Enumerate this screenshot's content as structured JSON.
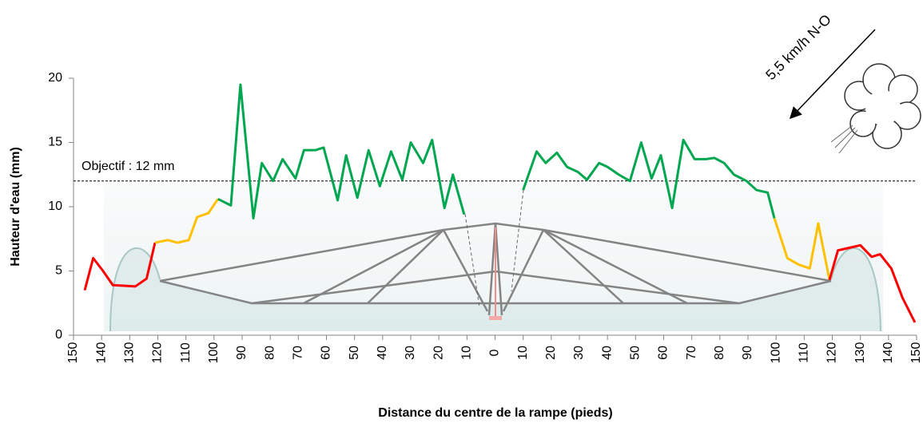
{
  "chart_data": {
    "type": "line",
    "y_label": "Hauteur d'eau (mm)",
    "x_label": "Distance  du centre de la rampe (pieds)",
    "annotation": "5,5 km/h N-O",
    "target": {
      "value": 12,
      "label": "Objectif : 12 mm"
    },
    "xlim": [
      -150,
      150
    ],
    "xticks": [
      {
        "value": -150,
        "label": "150"
      },
      {
        "value": -140,
        "label": "140"
      },
      {
        "value": -130,
        "label": "130"
      },
      {
        "value": -120,
        "label": "120"
      },
      {
        "value": -110,
        "label": "110"
      },
      {
        "value": -100,
        "label": "100"
      },
      {
        "value": -90,
        "label": "90"
      },
      {
        "value": -80,
        "label": "80"
      },
      {
        "value": -70,
        "label": "70"
      },
      {
        "value": -60,
        "label": "60"
      },
      {
        "value": -50,
        "label": "50"
      },
      {
        "value": -40,
        "label": "40"
      },
      {
        "value": -30,
        "label": "30"
      },
      {
        "value": -20,
        "label": "20"
      },
      {
        "value": -10,
        "label": "10"
      },
      0,
      10,
      20,
      30,
      40,
      50,
      60,
      70,
      80,
      90,
      100,
      110,
      120,
      130,
      140,
      150
    ],
    "ylim": [
      0,
      20
    ],
    "yticks": [
      0,
      5,
      10,
      15,
      20
    ],
    "series": [
      {
        "color": "#ff0000",
        "x": [
          -146,
          -143,
          -139.5,
          -136,
          -132,
          -128,
          -124,
          -121
        ],
        "values": [
          3.5,
          6.0,
          5.0,
          3.9,
          3.85,
          3.8,
          4.4,
          7.2
        ]
      },
      {
        "color": "#ffc000",
        "x": [
          -121,
          -116.5,
          -113,
          -109,
          -106,
          -102,
          -98.6
        ],
        "values": [
          7.2,
          7.4,
          7.2,
          7.4,
          9.2,
          9.5,
          10.6
        ]
      },
      {
        "color": "#00a650",
        "x": [
          -98.6,
          -94,
          -90.6,
          -86,
          -83,
          -79,
          -75.6,
          -71,
          -68,
          -64,
          -61,
          -56,
          -53,
          -49,
          -45,
          -41,
          -37,
          -33,
          -30,
          -25.6,
          -22.4,
          -18,
          -15,
          -11
        ],
        "values": [
          10.6,
          10.1,
          19.5,
          9.1,
          13.4,
          12.0,
          13.7,
          12.2,
          14.4,
          14.4,
          14.6,
          10.5,
          14.0,
          10.7,
          14.4,
          11.6,
          14.3,
          12.1,
          15.0,
          13.4,
          15.2,
          9.9,
          12.5,
          9.4
        ]
      },
      {
        "color": "#00a650",
        "x": [
          10,
          14.8,
          18,
          22,
          25.6,
          29.5,
          32.7,
          37,
          40,
          44,
          48,
          52,
          55.7,
          59,
          63,
          67,
          71,
          75,
          78,
          81.5,
          85,
          89.5,
          93,
          97,
          99.4
        ],
        "values": [
          11.3,
          14.3,
          13.4,
          14.2,
          13.1,
          12.7,
          12.1,
          13.4,
          13.1,
          12.5,
          12.0,
          15.0,
          12.2,
          14.0,
          9.9,
          15.2,
          13.7,
          13.7,
          13.8,
          13.4,
          12.5,
          12.0,
          11.3,
          11.1,
          9.1
        ]
      },
      {
        "color": "#ffc000",
        "x": [
          99.4,
          104,
          108,
          112,
          115,
          119
        ],
        "values": [
          9.1,
          6.0,
          5.5,
          5.2,
          8.7,
          4.3
        ]
      },
      {
        "color": "#ff0000",
        "x": [
          119,
          122,
          126,
          130,
          134,
          137,
          141,
          145,
          149.4
        ],
        "values": [
          4.3,
          6.6,
          6.8,
          7.0,
          6.1,
          6.3,
          5.2,
          2.9,
          1.0
        ]
      }
    ]
  }
}
